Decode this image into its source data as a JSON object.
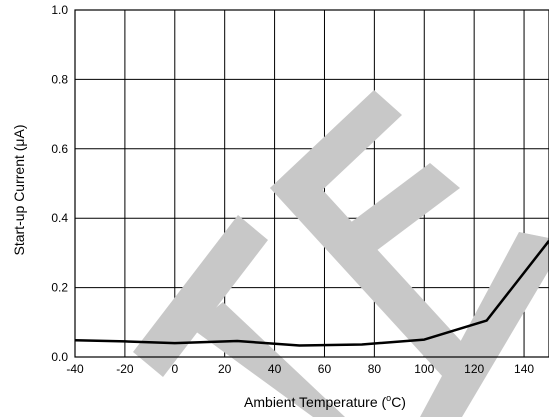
{
  "chart_data": {
    "type": "line",
    "xlabel_main": "Ambient Temperature (",
    "xlabel_sup": "o",
    "xlabel_end": "C)",
    "ylabel": "Start-up Current (μA)",
    "xlim": [
      -40,
      150
    ],
    "ylim": [
      0.0,
      1.0
    ],
    "x_ticks": [
      "-40",
      "-20",
      "0",
      "20",
      "40",
      "60",
      "80",
      "100",
      "120",
      "140"
    ],
    "y_ticks": [
      "0.0",
      "0.2",
      "0.4",
      "0.6",
      "0.8",
      "1.0"
    ],
    "grid": true,
    "series": [
      {
        "color": "#000000",
        "x": [
          -40,
          -20,
          0,
          25,
          50,
          75,
          100,
          125,
          150
        ],
        "y": [
          0.048,
          0.045,
          0.04,
          0.046,
          0.033,
          0.036,
          0.05,
          0.105,
          0.335
        ]
      }
    ],
    "watermark_color": "#c8c8c8"
  }
}
